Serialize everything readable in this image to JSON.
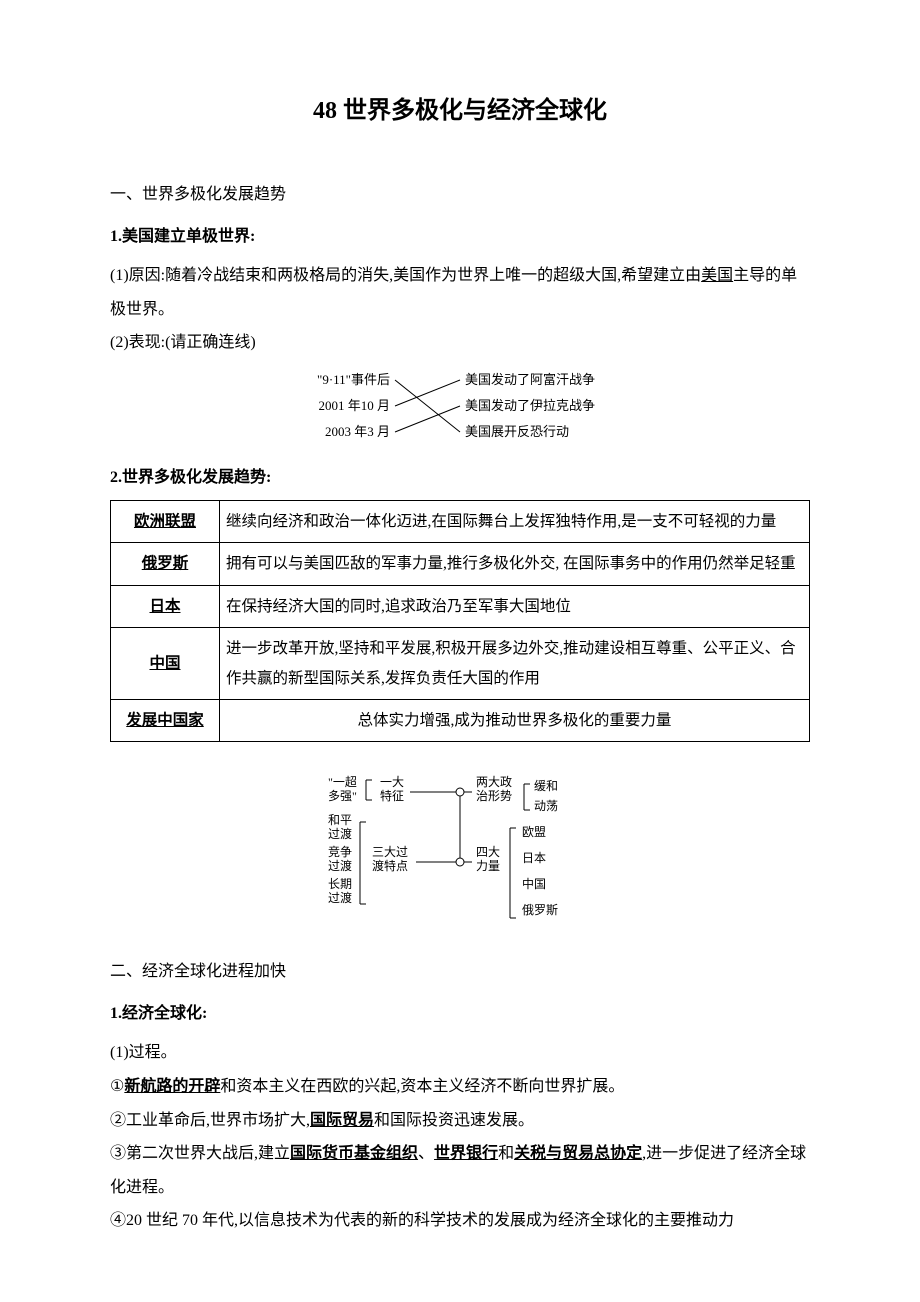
{
  "title": "48  世界多极化与经济全球化",
  "sec1": {
    "heading": "一、世界多极化发展趋势",
    "h1": "1.美国建立单极世界:",
    "p1_prefix": "(1)原因:随着冷战结束和两极格局的消失,美国作为世界上唯一的超级大国,希望建立由",
    "p1_u": "美国",
    "p1_suffix": "主导的单极世界。",
    "p2": "(2)表现:(请正确连线)",
    "match": {
      "left": [
        "\"9·11\"事件后",
        "2001 年10 月",
        "2003 年3 月"
      ],
      "right": [
        "美国发动了阿富汗战争",
        "美国发动了伊拉克战争",
        "美国展开反恐行动"
      ],
      "connections": [
        [
          0,
          2
        ],
        [
          1,
          0
        ],
        [
          2,
          1
        ]
      ],
      "font_size": 13,
      "line_color": "#000000"
    },
    "h2": "2.世界多极化发展趋势:",
    "table": {
      "rows": [
        {
          "label": "欧洲联盟",
          "text": "继续向经济和政治一体化迈进,在国际舞台上发挥独特作用,是一支不可轻视的力量"
        },
        {
          "label": "俄罗斯",
          "text": "拥有可以与美国匹敌的军事力量,推行多极化外交,  在国际事务中的作用仍然举足轻重"
        },
        {
          "label": "日本",
          "text": "在保持经济大国的同时,追求政治乃至军事大国地位"
        },
        {
          "label": "中国",
          "text": "进一步改革开放,坚持和平发展,积极开展多边外交,推动建设相互尊重、公平正义、合作共赢的新型国际关系,发挥负责任大国的作用"
        },
        {
          "label": "发展中国家",
          "text": "总体实力增强,成为推动世界多极化的重要力量",
          "center": true
        }
      ]
    },
    "bracket": {
      "left_top": {
        "label": "\"一超\n多强\"",
        "items": [
          "一大\n特征"
        ]
      },
      "left_mid": {
        "items": [
          "和平\n过渡",
          "竞争\n过渡",
          "长期\n过渡"
        ],
        "label": "三大过\n渡特点"
      },
      "right_top": {
        "label": "两大政\n治形势",
        "items": [
          "缓和",
          "动荡"
        ]
      },
      "right_bot": {
        "label": "四大\n力量",
        "items": [
          "欧盟",
          "日本",
          "中国",
          "俄罗斯"
        ]
      },
      "font_size": 12,
      "line_color": "#000000",
      "node_fill": "#ffffff",
      "node_stroke": "#000000"
    }
  },
  "sec2": {
    "heading": "二、经济全球化进程加快",
    "h1": "1.经济全球化:",
    "p1": "(1)过程。",
    "l1_pre": "①",
    "l1_u": "新航路的开辟",
    "l1_suf": "和资本主义在西欧的兴起,资本主义经济不断向世界扩展。",
    "l2_pre": "②工业革命后,世界市场扩大,",
    "l2_u": "国际贸易",
    "l2_suf": "和国际投资迅速发展。",
    "l3_pre": "③第二次世界大战后,建立",
    "l3_u1": "国际货币基金组织",
    "l3_mid1": "、",
    "l3_u2": "世界银行",
    "l3_mid2": "和",
    "l3_u3": "关税与贸易总协定",
    "l3_suf": ",进一步促进了经济全球化进程。",
    "l4": "④20 世纪 70  年代,以信息技术为代表的新的科学技术的发展成为经济全球化的主要推动力"
  }
}
